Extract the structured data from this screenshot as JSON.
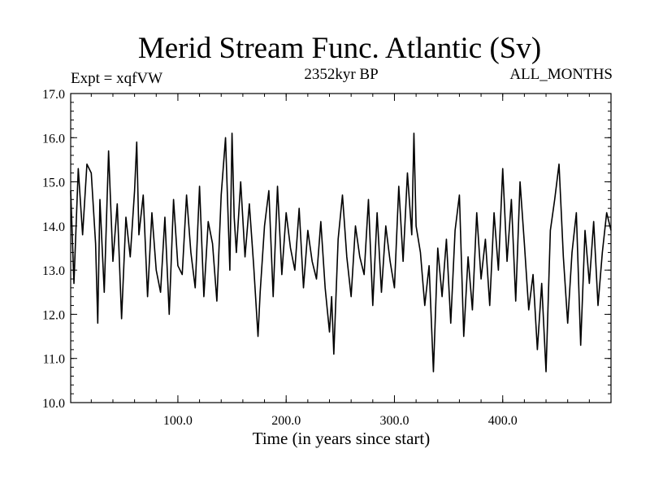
{
  "chart_data": {
    "type": "line",
    "title": "Merid Stream Func. Atlantic (Sv)",
    "subtitle_left": "Expt = xqfVW",
    "subtitle_center": "2352kyr BP",
    "subtitle_right": "ALL_MONTHS",
    "xlabel": "Time (in years since start)",
    "ylabel": "",
    "xlim": [
      1,
      500
    ],
    "ylim": [
      10.0,
      17.0
    ],
    "x_ticks": [
      100,
      200,
      300,
      400
    ],
    "x_tick_labels": [
      "100.0",
      "200.0",
      "300.0",
      "400.0"
    ],
    "y_ticks": [
      10,
      11,
      12,
      13,
      14,
      15,
      16,
      17
    ],
    "y_tick_labels": [
      "10.0",
      "11.0",
      "12.0",
      "13.0",
      "14.0",
      "15.0",
      "16.0",
      "17.0"
    ],
    "grid": false,
    "series": [
      {
        "name": "Merid Stream Func. Atlantic",
        "color": "#000000",
        "x": [
          1,
          4,
          8,
          12,
          16,
          20,
          24,
          26,
          28,
          32,
          36,
          40,
          44,
          48,
          52,
          56,
          60,
          62,
          64,
          68,
          72,
          76,
          80,
          84,
          88,
          92,
          96,
          100,
          104,
          108,
          112,
          116,
          120,
          124,
          128,
          132,
          136,
          140,
          144,
          148,
          150,
          152,
          154,
          158,
          162,
          166,
          170,
          174,
          176,
          180,
          184,
          188,
          192,
          196,
          200,
          204,
          208,
          212,
          216,
          220,
          224,
          228,
          232,
          236,
          240,
          242,
          244,
          248,
          252,
          256,
          260,
          264,
          268,
          272,
          276,
          280,
          284,
          288,
          292,
          296,
          300,
          304,
          308,
          312,
          316,
          318,
          320,
          324,
          328,
          332,
          336,
          340,
          344,
          348,
          352,
          356,
          360,
          364,
          368,
          372,
          376,
          380,
          384,
          388,
          392,
          396,
          400,
          404,
          408,
          412,
          416,
          420,
          424,
          428,
          432,
          436,
          440,
          444,
          448,
          452,
          456,
          460,
          464,
          468,
          472,
          476,
          480,
          484,
          488,
          492,
          496,
          500
        ],
        "values": [
          14.8,
          12.7,
          15.3,
          13.8,
          15.4,
          15.2,
          13.6,
          11.8,
          14.6,
          12.5,
          15.7,
          13.2,
          14.5,
          11.9,
          14.2,
          13.3,
          14.8,
          15.9,
          13.8,
          14.7,
          12.4,
          14.3,
          13.0,
          12.5,
          14.2,
          12.0,
          14.6,
          13.1,
          12.9,
          14.7,
          13.4,
          12.6,
          14.9,
          12.4,
          14.1,
          13.6,
          12.3,
          14.7,
          16.0,
          13.0,
          16.1,
          14.2,
          13.4,
          15.0,
          13.3,
          14.5,
          13.1,
          11.5,
          12.5,
          14.0,
          14.8,
          12.4,
          14.9,
          12.9,
          14.3,
          13.5,
          13.0,
          14.4,
          12.6,
          13.9,
          13.2,
          12.8,
          14.1,
          12.6,
          11.6,
          12.4,
          11.1,
          13.7,
          14.7,
          13.3,
          12.4,
          14.0,
          13.3,
          12.9,
          14.6,
          12.2,
          14.3,
          12.5,
          14.0,
          13.2,
          12.6,
          14.9,
          13.2,
          15.2,
          13.8,
          16.1,
          14.0,
          13.4,
          12.2,
          13.1,
          10.7,
          13.5,
          12.4,
          13.7,
          11.8,
          13.9,
          14.7,
          11.5,
          13.3,
          12.1,
          14.3,
          12.8,
          13.7,
          12.2,
          14.3,
          13.0,
          15.3,
          13.2,
          14.6,
          12.3,
          15.0,
          13.6,
          12.1,
          12.9,
          11.2,
          12.7,
          10.7,
          13.9,
          14.6,
          15.4,
          13.3,
          11.8,
          13.4,
          14.3,
          11.3,
          13.9,
          12.7,
          14.1,
          12.2,
          13.4,
          14.3,
          13.9
        ]
      }
    ]
  }
}
